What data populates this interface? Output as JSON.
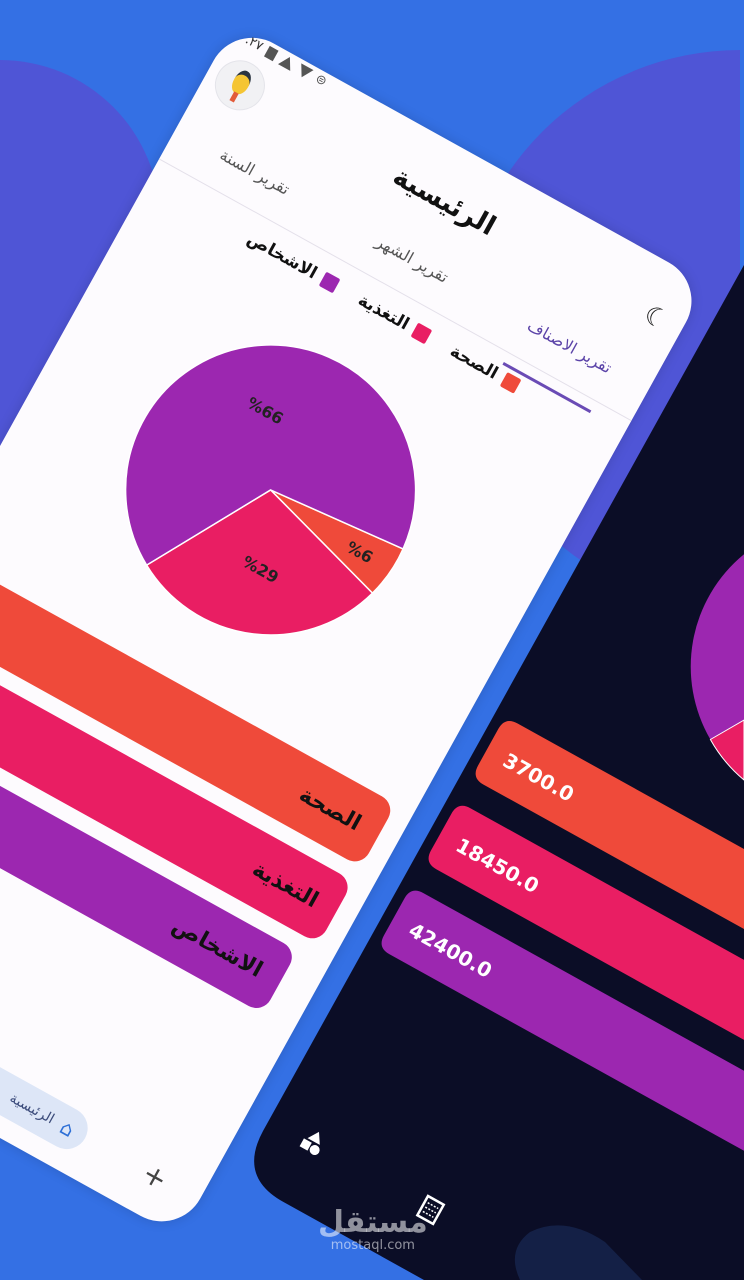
{
  "colors": {
    "background": "#3470e4",
    "health": "#ef4a3a",
    "food": "#e91e63",
    "people": "#9c27b0",
    "dark_bg": "#0b0d26",
    "accent": "#6a4bb5"
  },
  "light": {
    "status": {
      "time": ".٢٧",
      "icons": [
        "battery-icon",
        "signal-icon",
        "wifi-icon",
        "sync-icon"
      ]
    },
    "title": "الرئيسية",
    "tabs": [
      {
        "label": "تقرير الاصناف",
        "active": true
      },
      {
        "label": "تقرير الشهر",
        "active": false
      },
      {
        "label": "تقرير السنة",
        "active": false
      }
    ],
    "legend": [
      {
        "label": "الصحة",
        "color": "#ef4a3a"
      },
      {
        "label": "التغذية",
        "color": "#e91e63"
      },
      {
        "label": "الاشخاص",
        "color": "#9c27b0"
      }
    ],
    "bars": [
      {
        "label": "الصحة",
        "color": "#ef4a3a"
      },
      {
        "label": "التغذية",
        "color": "#e91e63"
      },
      {
        "label": "الاشخاص",
        "color": "#9c27b0"
      }
    ],
    "nav": {
      "home_label": "الرئيسية",
      "plus_icon": "plus-icon"
    }
  },
  "chart_data": {
    "type": "pie",
    "slices": [
      {
        "category": "الصحة",
        "value": 6,
        "label": "%6",
        "color": "#ef4a3a"
      },
      {
        "category": "التغذية",
        "value": 29,
        "label": "%29",
        "color": "#e91e63"
      },
      {
        "category": "الاشخاص",
        "value": 66,
        "label": "%66",
        "color": "#9c27b0"
      }
    ]
  },
  "dark": {
    "bars": [
      {
        "value": "3700.0",
        "color": "#ef4a3a"
      },
      {
        "value": "18450.0",
        "color": "#e91e63"
      },
      {
        "value": "42400.0",
        "color": "#9c27b0"
      }
    ],
    "nav": [
      "shapes-icon",
      "table-icon"
    ]
  },
  "watermark": {
    "arabic": "مستقل",
    "latin": "mostaql.com"
  }
}
